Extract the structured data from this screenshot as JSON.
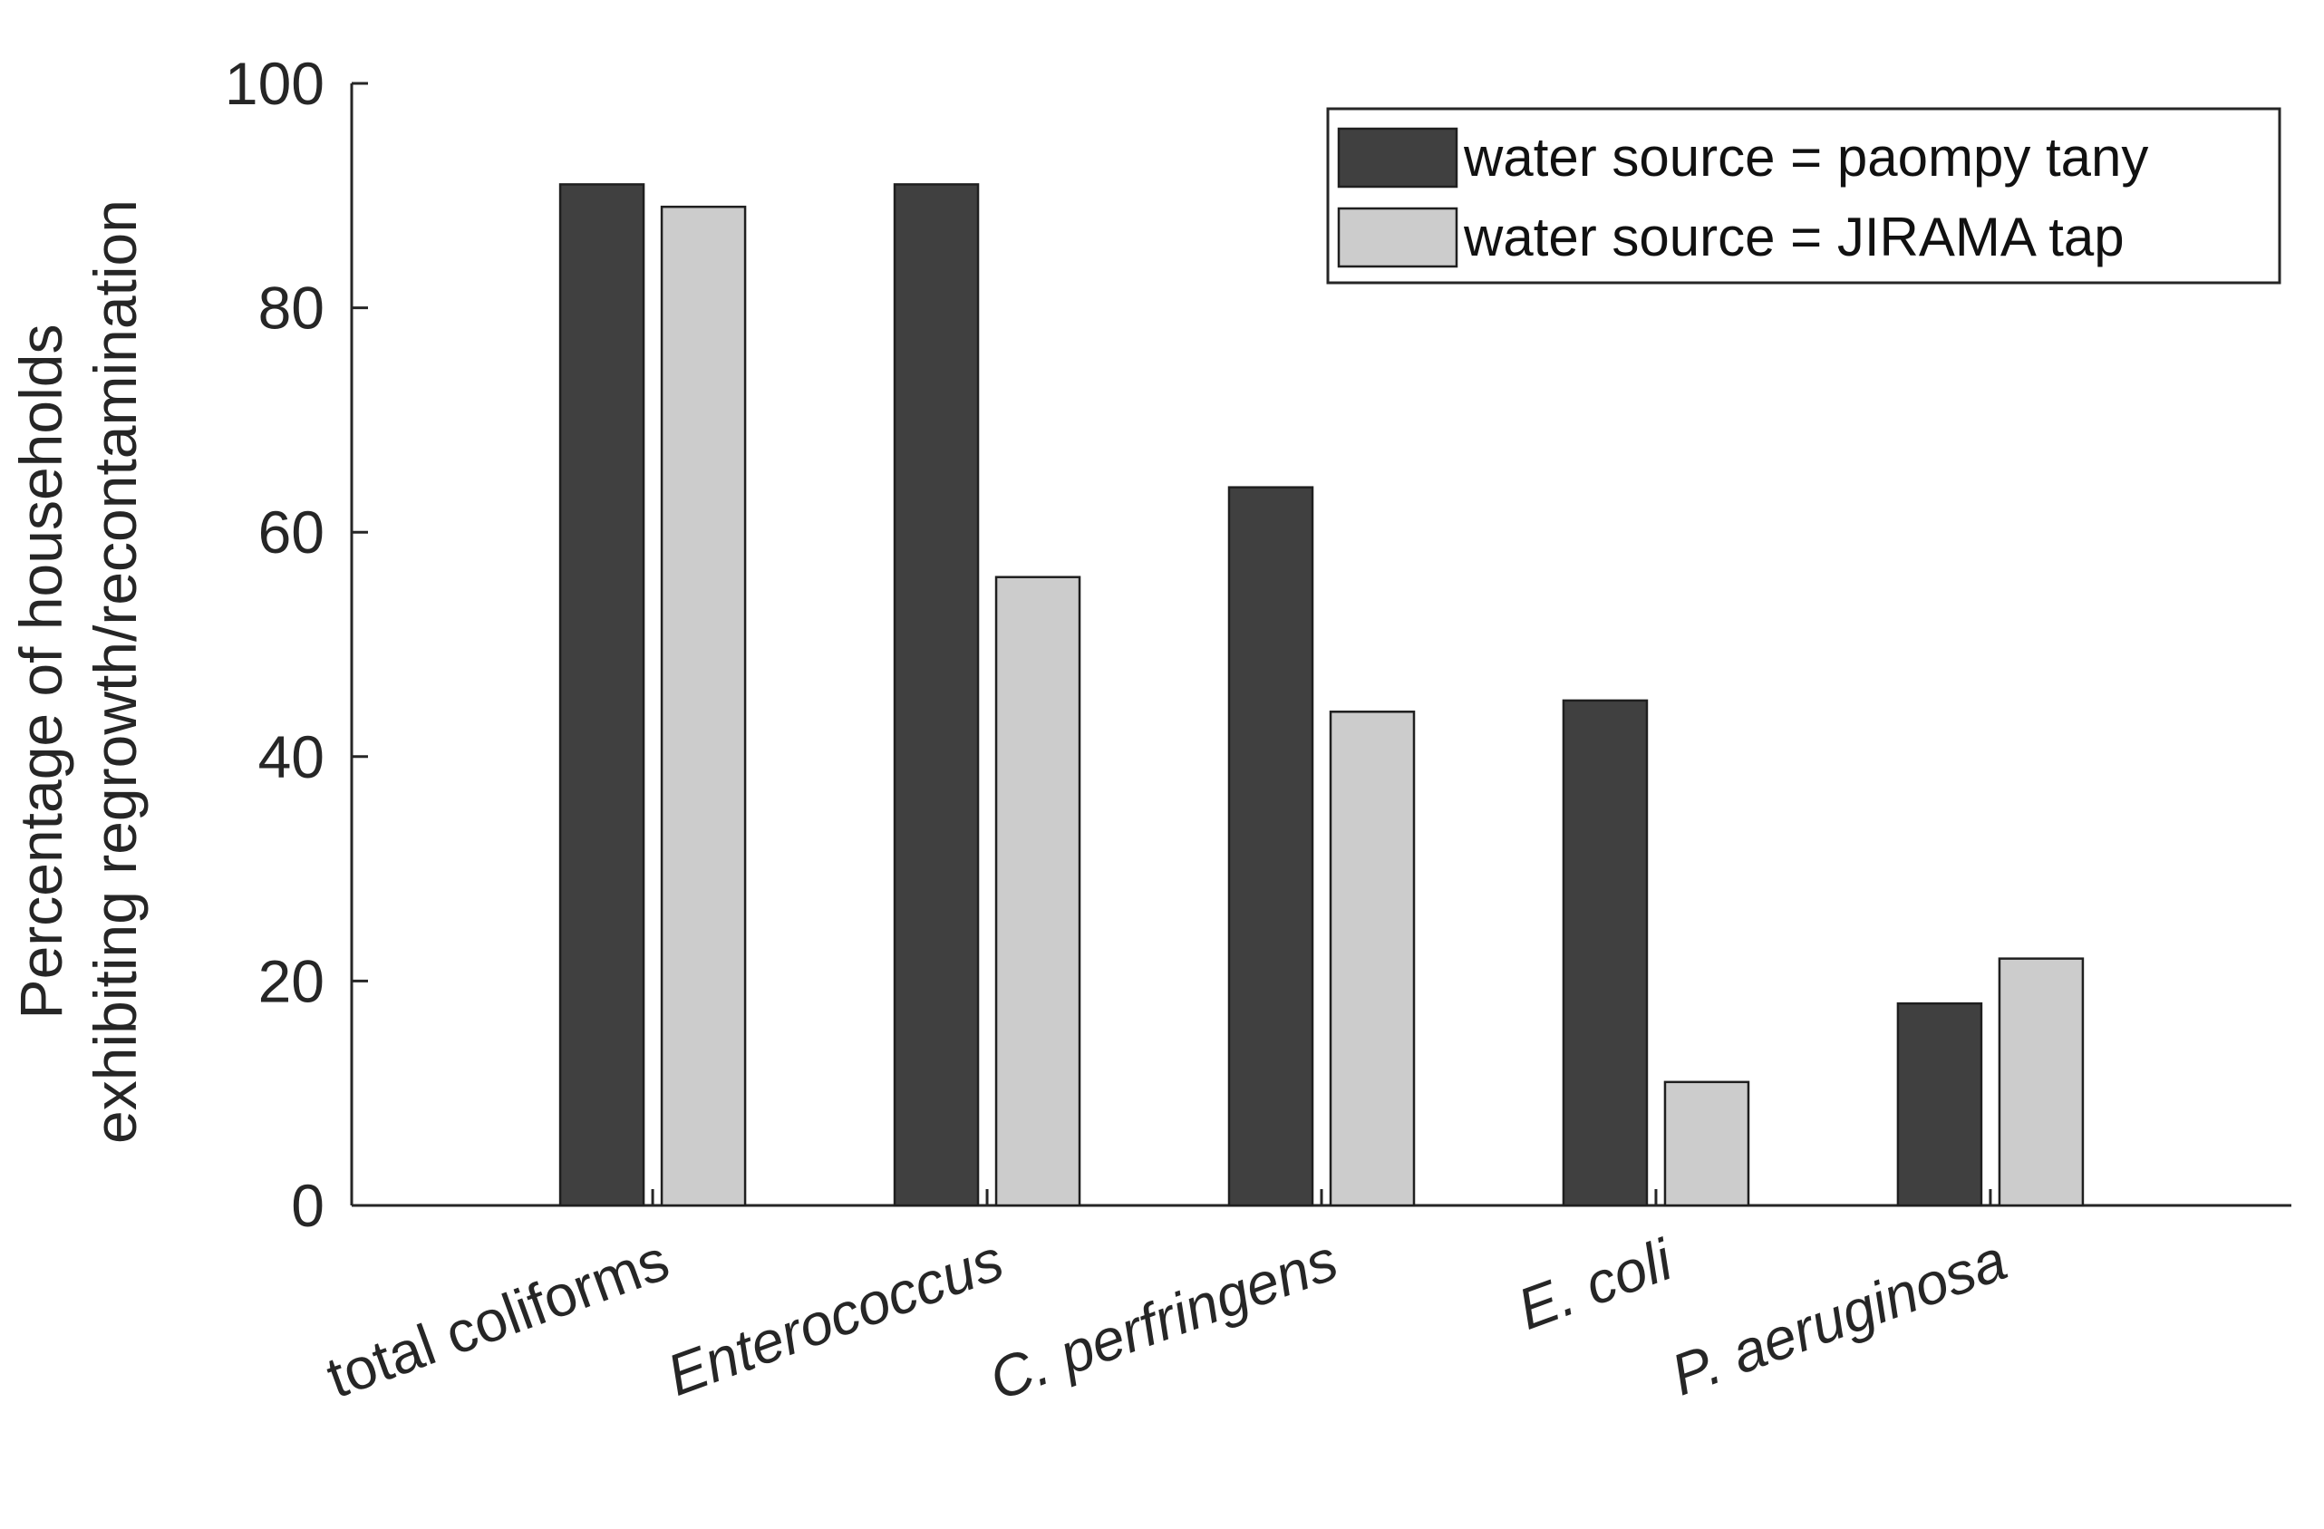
{
  "chart_data": {
    "type": "bar",
    "title": "",
    "xlabel": "",
    "ylabel_lines": [
      "Percentage of households",
      "exhibiting regrowth/recontamination"
    ],
    "ylim": [
      0,
      100
    ],
    "yticks": [
      0,
      20,
      40,
      60,
      80,
      100
    ],
    "grid": false,
    "categories": [
      {
        "label": "total coliforms",
        "italic": false
      },
      {
        "label": "Enterococcus",
        "italic": true
      },
      {
        "label": "C. perfringens",
        "italic": true
      },
      {
        "label": "E. coli",
        "italic": true
      },
      {
        "label": "P. aeruginosa",
        "italic": true
      }
    ],
    "series": [
      {
        "name": "water source = paompy tany",
        "color": "#404040",
        "values": [
          91,
          91,
          64,
          45,
          18
        ]
      },
      {
        "name": "water source = JIRAMA tap",
        "color": "#cccccc",
        "values": [
          89,
          56,
          44,
          11,
          22
        ]
      }
    ],
    "legend": {
      "placement": "top-right"
    }
  }
}
